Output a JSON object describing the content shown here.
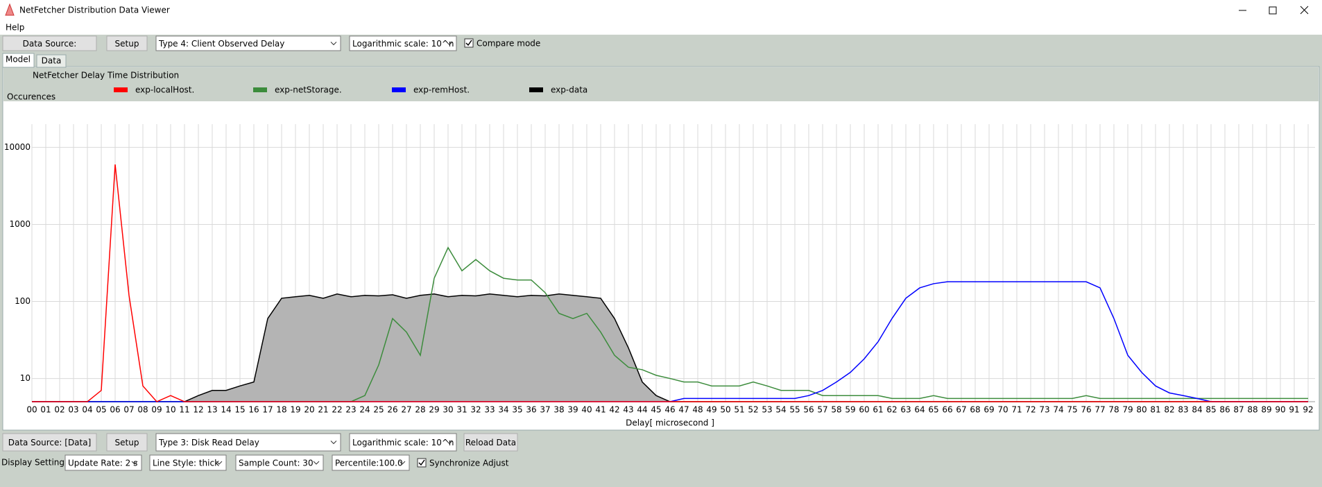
{
  "window": {
    "title": "NetFetcher Distribution Data Viewer",
    "menu": [
      "Help"
    ]
  },
  "toolbar": {
    "data_source": "Data Source:",
    "setup": "Setup",
    "type": "Type 4: Client Observed Delay",
    "scale": "Logarithmic scale: 10^n",
    "compare": "Compare mode"
  },
  "tabs": [
    "Model",
    "Data"
  ],
  "chart_data": {
    "type": "line",
    "title": "NetFetcher Delay Time Distribution",
    "y_label": "Occurences",
    "x_label": "Delay[ microsecond ]",
    "scale": "log",
    "grid": true,
    "categories": [
      "00",
      "01",
      "02",
      "03",
      "04",
      "05",
      "06",
      "07",
      "08",
      "09",
      "10",
      "11",
      "12",
      "13",
      "14",
      "15",
      "16",
      "17",
      "18",
      "19",
      "20",
      "21",
      "22",
      "23",
      "24",
      "25",
      "26",
      "27",
      "28",
      "29",
      "30",
      "31",
      "32",
      "33",
      "34",
      "35",
      "36",
      "37",
      "38",
      "39",
      "40",
      "41",
      "42",
      "43",
      "44",
      "45",
      "46",
      "47",
      "48",
      "49",
      "50",
      "51",
      "52",
      "53",
      "54",
      "55",
      "56",
      "57",
      "58",
      "59",
      "60",
      "61",
      "62",
      "63",
      "64",
      "65",
      "66",
      "67",
      "68",
      "69",
      "70",
      "71",
      "72",
      "73",
      "74",
      "75",
      "76",
      "77",
      "78",
      "79",
      "80",
      "81",
      "82",
      "83",
      "84",
      "85",
      "86",
      "87",
      "88",
      "89",
      "90",
      "91",
      "92"
    ],
    "ylim": [
      5,
      20000
    ],
    "yticks": [
      10,
      100,
      1000,
      10000
    ],
    "series": [
      {
        "name": "exp-localHost.",
        "color": "#ff0000",
        "values": [
          5,
          5,
          5,
          5,
          5,
          7,
          6000,
          120,
          8,
          5,
          6,
          5,
          5,
          5,
          5,
          5,
          5,
          5,
          5,
          5,
          5,
          5,
          5,
          5,
          5,
          5,
          5,
          5,
          5,
          5,
          5,
          5,
          5,
          5,
          5,
          5,
          5,
          5,
          5,
          5,
          5,
          5,
          5,
          5,
          5,
          5,
          5,
          5,
          5,
          5,
          5,
          5,
          5,
          5,
          5,
          5,
          5,
          5,
          5,
          5,
          5,
          5,
          5,
          5,
          5,
          5,
          5,
          5,
          5,
          5,
          5,
          5,
          5,
          5,
          5,
          5,
          5,
          5,
          5,
          5,
          5,
          5,
          5,
          5,
          5,
          5,
          5,
          5,
          5,
          5,
          5,
          5,
          5
        ]
      },
      {
        "name": "exp-netStorage.",
        "color": "#3c8c3c",
        "values": [
          5,
          5,
          5,
          5,
          5,
          5,
          5,
          5,
          5,
          5,
          5,
          5,
          5,
          5,
          5,
          5,
          5,
          5,
          5,
          5,
          5,
          5,
          5,
          5,
          6,
          15,
          60,
          40,
          20,
          200,
          500,
          250,
          350,
          250,
          200,
          190,
          190,
          130,
          70,
          60,
          70,
          40,
          20,
          14,
          13,
          11,
          10,
          9,
          9,
          8,
          8,
          8,
          9,
          8,
          7,
          7,
          7,
          6,
          6,
          6,
          6,
          6,
          5.5,
          5.5,
          5.5,
          6,
          5.5,
          5.5,
          5.5,
          5.5,
          5.5,
          5.5,
          5.5,
          5.5,
          5.5,
          5.5,
          6,
          5.5,
          5.5,
          5.5,
          5.5,
          5.5,
          5.5,
          5.5,
          5.5,
          5.5,
          5.5,
          5.5,
          5.5,
          5.5,
          5.5,
          5.5,
          5.5
        ]
      },
      {
        "name": "exp-remHost.",
        "color": "#0000ff",
        "values": [
          5,
          5,
          5,
          5,
          5,
          5,
          5,
          5,
          5,
          5,
          5,
          5,
          5,
          5,
          5,
          5,
          5,
          5,
          5,
          5,
          5,
          5,
          5,
          5,
          5,
          5,
          5,
          5,
          5,
          5,
          5,
          5,
          5,
          5,
          5,
          5,
          5,
          5,
          5,
          5,
          5,
          5,
          5,
          5,
          5,
          5,
          5,
          5.5,
          5.5,
          5.5,
          5.5,
          5.5,
          5.5,
          5.5,
          5.5,
          5.5,
          6,
          7,
          9,
          12,
          18,
          30,
          60,
          110,
          150,
          170,
          180,
          180,
          180,
          180,
          180,
          180,
          180,
          180,
          180,
          180,
          180,
          150,
          60,
          20,
          12,
          8,
          6.5,
          6,
          5.5,
          5,
          5,
          5,
          5,
          5,
          5,
          5,
          5
        ]
      },
      {
        "name": "exp-data",
        "color": "#000000",
        "fill": "#b4b4b4",
        "values": [
          5,
          5,
          5,
          5,
          5,
          5,
          5,
          5,
          5,
          5,
          5,
          5,
          6,
          7,
          7,
          8,
          9,
          60,
          110,
          115,
          120,
          110,
          125,
          115,
          120,
          118,
          122,
          110,
          120,
          125,
          115,
          120,
          118,
          125,
          120,
          115,
          120,
          118,
          125,
          120,
          115,
          110,
          60,
          25,
          9,
          6,
          5,
          5,
          5,
          5,
          5,
          5,
          5,
          5,
          5,
          5,
          5,
          5,
          5,
          5,
          5,
          5,
          5,
          5,
          5,
          5,
          5,
          5,
          5,
          5,
          5,
          5,
          5,
          5,
          5,
          5,
          5,
          5,
          5,
          5,
          5,
          5,
          5,
          5,
          5,
          5,
          5,
          5,
          5,
          5,
          5,
          5,
          5
        ]
      }
    ]
  },
  "bottom_toolbar": {
    "data_source": "Data Source: [Data]",
    "setup": "Setup",
    "type": "Type 3: Disk Read Delay",
    "scale": "Logarithmic scale: 10^n",
    "reload": "Reload Data"
  },
  "display_settings": {
    "label": "Display Setting:",
    "update_rate": "Update Rate: 2 s",
    "line_style": "Line Style: thick",
    "sample_count": "Sample Count: 30",
    "percentile": "Percentile:100.0",
    "synchronize": "Synchronize Adjust"
  }
}
